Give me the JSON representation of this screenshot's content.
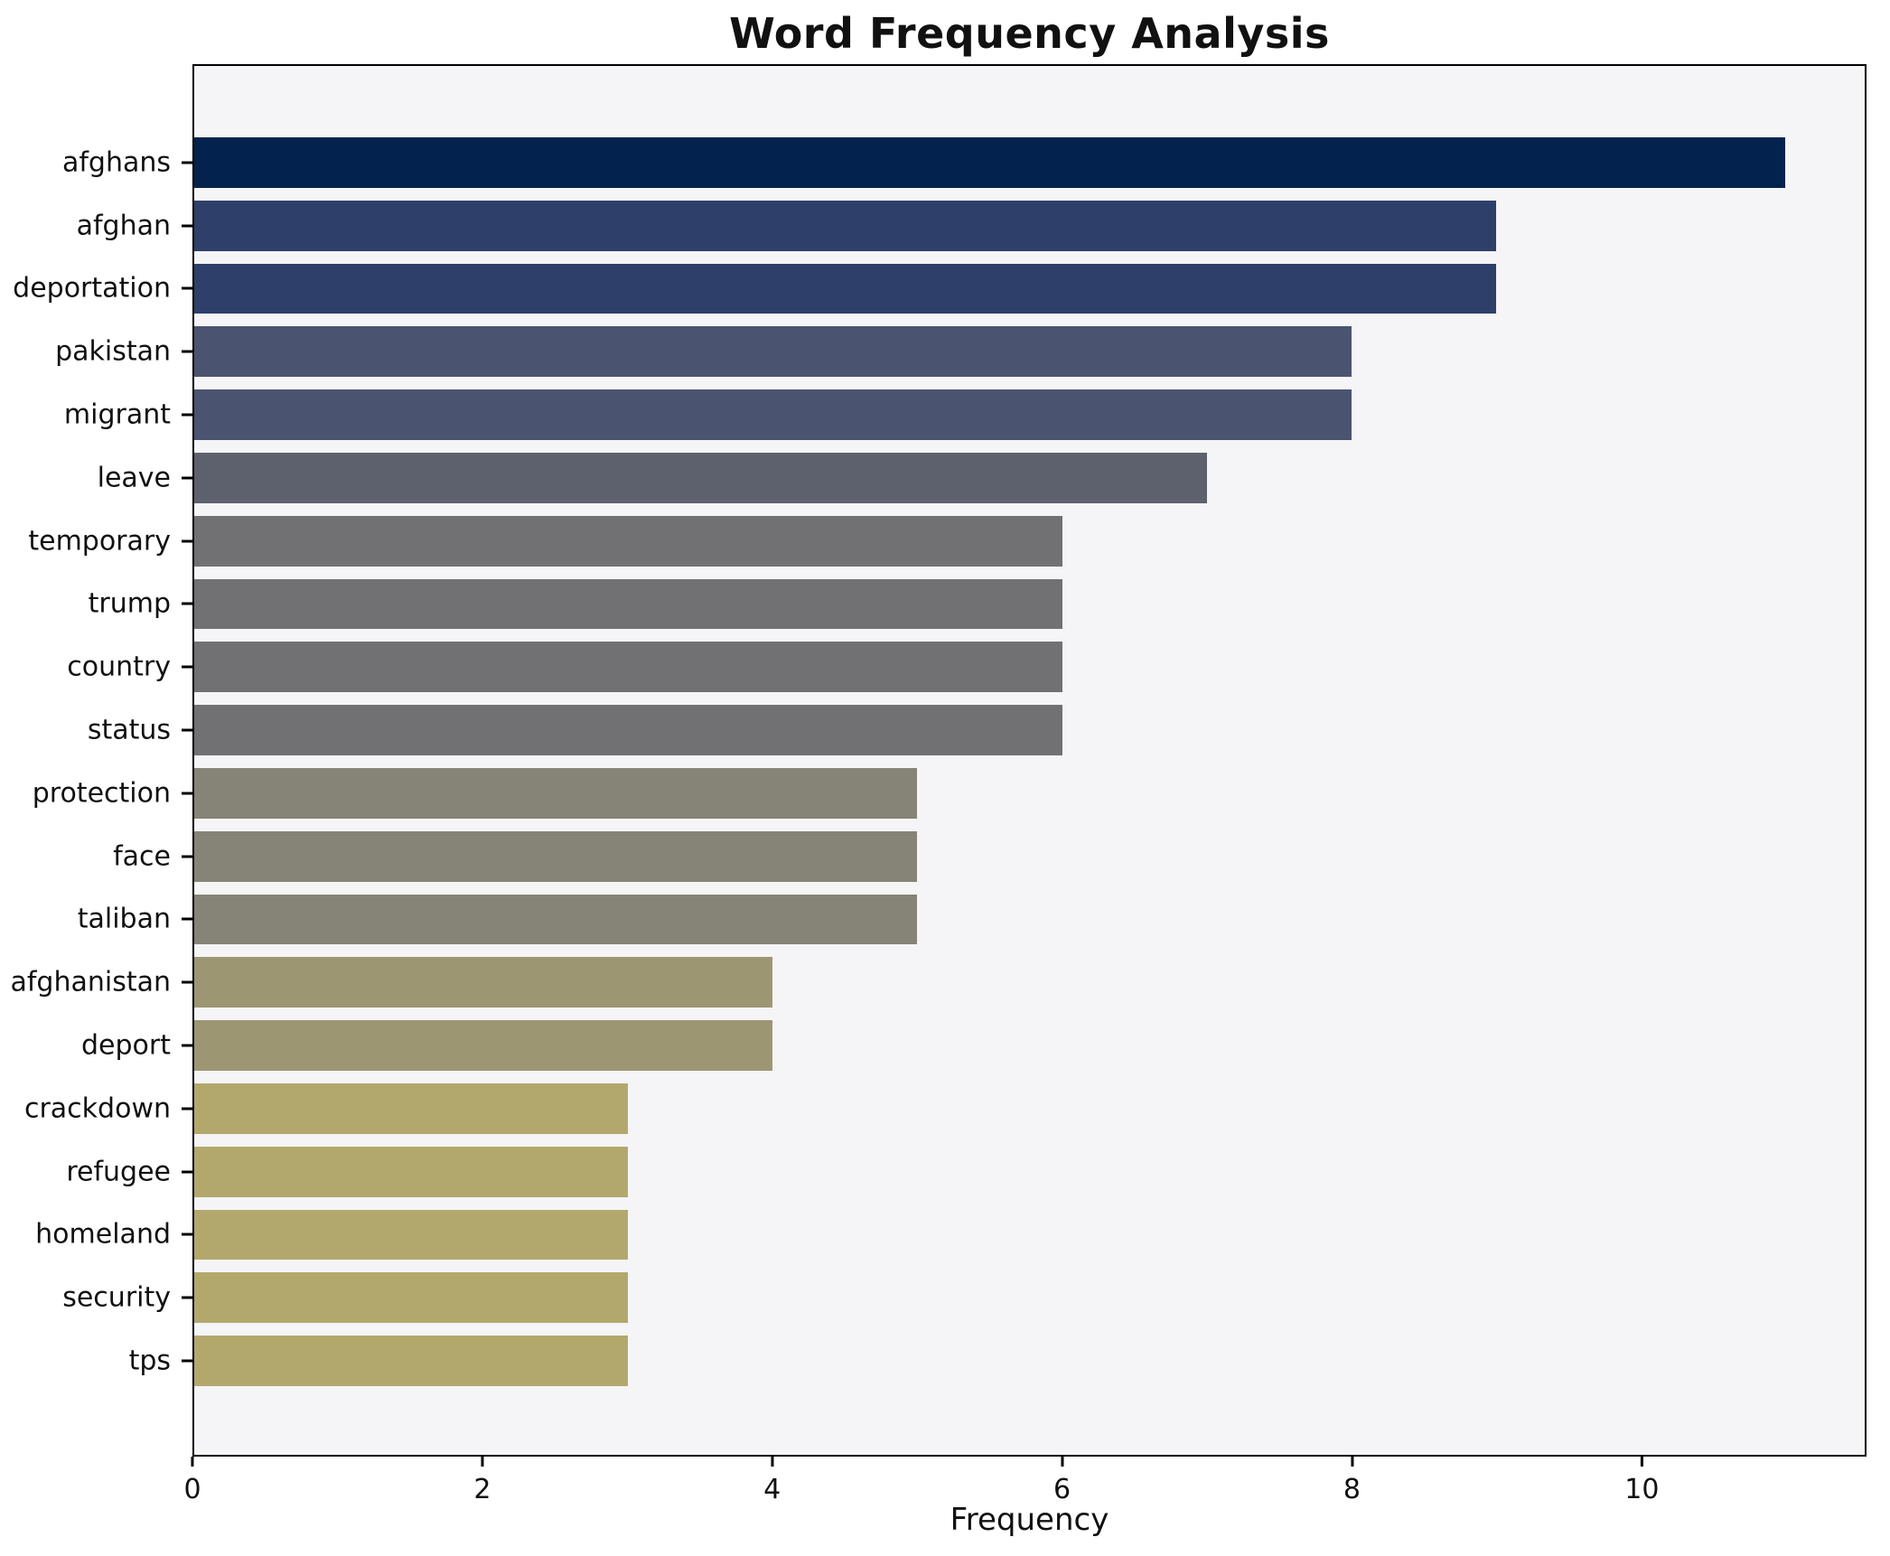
{
  "chart_data": {
    "type": "bar",
    "orientation": "horizontal",
    "title": "Word Frequency Analysis",
    "xlabel": "Frequency",
    "ylabel": "",
    "categories": [
      "afghans",
      "afghan",
      "deportation",
      "pakistan",
      "migrant",
      "leave",
      "temporary",
      "trump",
      "country",
      "status",
      "protection",
      "face",
      "taliban",
      "afghanistan",
      "deport",
      "crackdown",
      "refugee",
      "homeland",
      "security",
      "tps"
    ],
    "values": [
      11,
      9,
      9,
      8,
      8,
      7,
      6,
      6,
      6,
      6,
      5,
      5,
      5,
      4,
      4,
      3,
      3,
      3,
      3,
      3
    ],
    "bar_colors": [
      "#03234e",
      "#2e4069",
      "#2e4069",
      "#4a5471",
      "#4a5471",
      "#5d616e",
      "#717173",
      "#717173",
      "#717173",
      "#717173",
      "#868476",
      "#868476",
      "#868476",
      "#9d9673",
      "#9d9673",
      "#b3a86c",
      "#b3a86c",
      "#b3a86c",
      "#b3a86c",
      "#b3a86c"
    ],
    "xlim": [
      0,
      11.55
    ],
    "x_ticks": [
      0,
      2,
      4,
      6,
      8,
      10
    ],
    "grid": false,
    "legend": "none",
    "plot_background": "#f5f4f6",
    "figure_background": "#ffffff",
    "spine_color": "#000000"
  }
}
